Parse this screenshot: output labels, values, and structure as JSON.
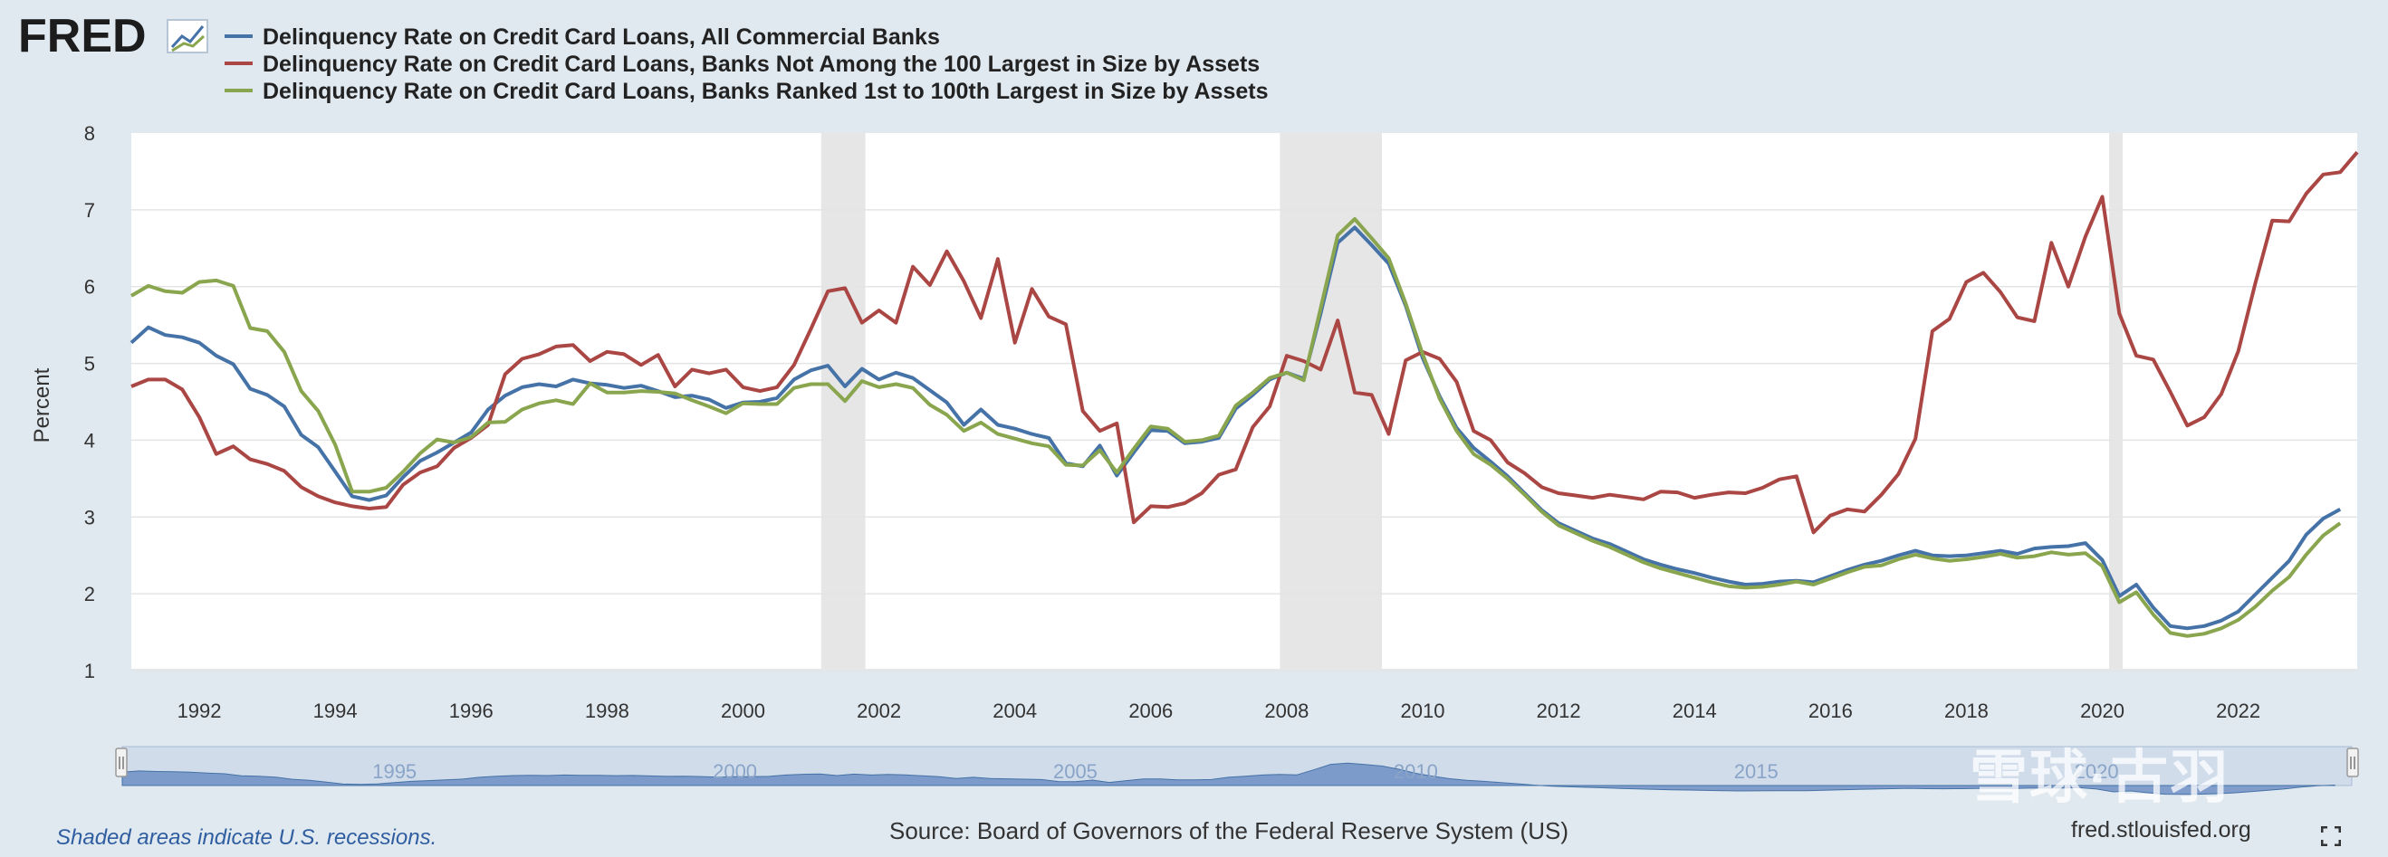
{
  "header": {
    "logo_text": "FRED",
    "logo_mark": "line-chart-logo-icon"
  },
  "chart_data": {
    "type": "line",
    "title": "",
    "xlabel": "",
    "ylabel": "Percent",
    "xlim": [
      1991.0,
      2023.75
    ],
    "ylim": [
      1,
      8
    ],
    "yticks": [
      1,
      2,
      3,
      4,
      5,
      6,
      7,
      8
    ],
    "xticks": [
      1992,
      1994,
      1996,
      1998,
      2000,
      2002,
      2004,
      2006,
      2008,
      2010,
      2012,
      2014,
      2016,
      2018,
      2020,
      2022
    ],
    "recessions": [
      [
        2001.15,
        2001.8
      ],
      [
        2007.9,
        2009.4
      ],
      [
        2020.1,
        2020.3
      ]
    ],
    "x_start": 1991.0,
    "x_step": 0.25,
    "series": [
      {
        "name": "Delinquency Rate on Credit Card Loans, All Commercial Banks",
        "color": "#4572a7",
        "values": [
          5.27,
          5.47,
          5.37,
          5.34,
          5.27,
          5.1,
          4.99,
          4.67,
          4.59,
          4.44,
          4.07,
          3.91,
          3.59,
          3.27,
          3.22,
          3.28,
          3.52,
          3.73,
          3.84,
          3.97,
          4.1,
          4.4,
          4.58,
          4.69,
          4.73,
          4.7,
          4.79,
          4.74,
          4.72,
          4.68,
          4.71,
          4.64,
          4.56,
          4.58,
          4.53,
          4.42,
          4.49,
          4.5,
          4.55,
          4.79,
          4.91,
          4.97,
          4.7,
          4.93,
          4.79,
          4.88,
          4.81,
          4.65,
          4.49,
          4.2,
          4.4,
          4.2,
          4.15,
          4.08,
          4.03,
          3.7,
          3.66,
          3.93,
          3.54,
          3.84,
          4.13,
          4.12,
          3.96,
          3.98,
          4.03,
          4.41,
          4.59,
          4.79,
          4.88,
          4.8,
          5.65,
          6.57,
          6.77,
          6.54,
          6.3,
          5.75,
          5.07,
          4.57,
          4.16,
          3.9,
          3.72,
          3.53,
          3.31,
          3.09,
          2.92,
          2.82,
          2.72,
          2.65,
          2.55,
          2.45,
          2.38,
          2.32,
          2.27,
          2.21,
          2.16,
          2.12,
          2.13,
          2.16,
          2.17,
          2.15,
          2.23,
          2.31,
          2.38,
          2.43,
          2.5,
          2.56,
          2.5,
          2.49,
          2.5,
          2.53,
          2.56,
          2.52,
          2.59,
          2.61,
          2.62,
          2.66,
          2.44,
          1.97,
          2.12,
          1.82,
          1.58,
          1.55,
          1.58,
          1.65,
          1.77,
          1.99,
          2.21,
          2.43,
          2.77,
          2.98,
          3.1
        ]
      },
      {
        "name": "Delinquency Rate on Credit Card Loans, Banks Not Among the 100 Largest in Size by Assets",
        "color": "#aa4643",
        "values": [
          4.7,
          4.79,
          4.79,
          4.66,
          4.3,
          3.82,
          3.92,
          3.75,
          3.69,
          3.6,
          3.39,
          3.27,
          3.19,
          3.14,
          3.11,
          3.13,
          3.42,
          3.58,
          3.66,
          3.9,
          4.03,
          4.2,
          4.86,
          5.06,
          5.12,
          5.22,
          5.24,
          5.03,
          5.15,
          5.12,
          4.98,
          5.11,
          4.7,
          4.92,
          4.87,
          4.92,
          4.69,
          4.64,
          4.69,
          4.98,
          5.45,
          5.94,
          5.98,
          5.53,
          5.69,
          5.53,
          6.26,
          6.02,
          6.46,
          6.07,
          5.59,
          6.36,
          5.27,
          5.97,
          5.61,
          5.51,
          4.38,
          4.12,
          4.22,
          2.93,
          3.14,
          3.13,
          3.18,
          3.31,
          3.55,
          3.62,
          4.17,
          4.44,
          5.1,
          5.03,
          4.92,
          5.56,
          4.62,
          4.59,
          4.08,
          5.04,
          5.15,
          5.06,
          4.76,
          4.12,
          4.0,
          3.71,
          3.57,
          3.39,
          3.31,
          3.28,
          3.25,
          3.29,
          3.26,
          3.23,
          3.33,
          3.32,
          3.25,
          3.29,
          3.32,
          3.31,
          3.38,
          3.49,
          3.53,
          2.8,
          3.02,
          3.1,
          3.07,
          3.29,
          3.56,
          4.02,
          5.42,
          5.58,
          6.06,
          6.18,
          5.93,
          5.6,
          5.55,
          6.57,
          6.0,
          6.65,
          7.17,
          5.65,
          5.1,
          5.05,
          4.63,
          4.19,
          4.3,
          4.6,
          5.16,
          6.04,
          6.86,
          6.85,
          7.21,
          7.46,
          7.49,
          7.75
        ]
      },
      {
        "name": "Delinquency Rate on Credit Card Loans, Banks Ranked 1st to 100th Largest in Size by Assets",
        "color": "#89a54e",
        "values": [
          5.88,
          6.01,
          5.94,
          5.92,
          6.06,
          6.08,
          6.01,
          5.46,
          5.42,
          5.15,
          4.64,
          4.38,
          3.94,
          3.33,
          3.33,
          3.38,
          3.59,
          3.83,
          4.01,
          3.97,
          4.04,
          4.23,
          4.24,
          4.4,
          4.48,
          4.52,
          4.47,
          4.74,
          4.62,
          4.62,
          4.64,
          4.63,
          4.61,
          4.52,
          4.44,
          4.35,
          4.48,
          4.47,
          4.47,
          4.68,
          4.73,
          4.73,
          4.51,
          4.77,
          4.69,
          4.73,
          4.68,
          4.46,
          4.33,
          4.12,
          4.23,
          4.08,
          4.02,
          3.96,
          3.92,
          3.68,
          3.67,
          3.87,
          3.58,
          3.89,
          4.18,
          4.15,
          3.98,
          4.0,
          4.06,
          4.45,
          4.62,
          4.81,
          4.88,
          4.78,
          5.72,
          6.67,
          6.88,
          6.63,
          6.37,
          5.78,
          5.12,
          4.54,
          4.12,
          3.82,
          3.68,
          3.5,
          3.29,
          3.07,
          2.89,
          2.79,
          2.69,
          2.61,
          2.51,
          2.41,
          2.33,
          2.27,
          2.21,
          2.15,
          2.1,
          2.08,
          2.09,
          2.12,
          2.16,
          2.12,
          2.2,
          2.28,
          2.35,
          2.37,
          2.45,
          2.51,
          2.46,
          2.43,
          2.45,
          2.48,
          2.52,
          2.47,
          2.49,
          2.54,
          2.51,
          2.53,
          2.36,
          1.89,
          2.02,
          1.73,
          1.49,
          1.45,
          1.48,
          1.55,
          1.66,
          1.83,
          2.04,
          2.22,
          2.51,
          2.76,
          2.92
        ]
      }
    ]
  },
  "navigator": {
    "year_labels": [
      "1995",
      "2000",
      "2005",
      "2010",
      "2015",
      "2020"
    ]
  },
  "footer": {
    "note": "Shaded areas indicate U.S. recessions.",
    "source": "Source: Board of Governors of the Federal Reserve System (US)",
    "site": "fred.stlouisfed.org",
    "watermark": "雪球·古羽"
  }
}
